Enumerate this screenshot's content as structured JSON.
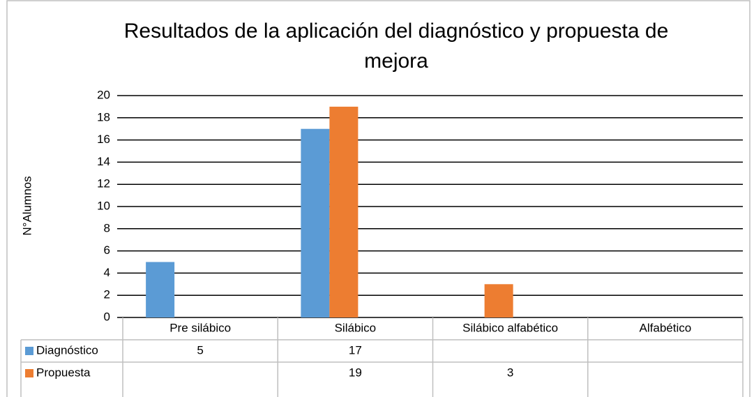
{
  "chart_data": {
    "type": "bar",
    "title_lines": [
      "Resultados de la aplicación del diagnóstico y propuesta de",
      "mejora"
    ],
    "y_label": "N°Alumnos",
    "categories": [
      "Pre silábico",
      "Silábico",
      "Silábico alfabético",
      "Alfabético"
    ],
    "series": [
      {
        "name": "Diagnóstico",
        "color": "#5b9bd5",
        "values": [
          5,
          17,
          null,
          null
        ]
      },
      {
        "name": "Propuesta",
        "color": "#ed7d31",
        "values": [
          null,
          19,
          3,
          null
        ]
      }
    ],
    "ylim": [
      0,
      20
    ],
    "yticks": [
      0,
      2,
      4,
      6,
      8,
      10,
      12,
      14,
      16,
      18,
      20
    ],
    "grid": true,
    "data_table": true
  }
}
